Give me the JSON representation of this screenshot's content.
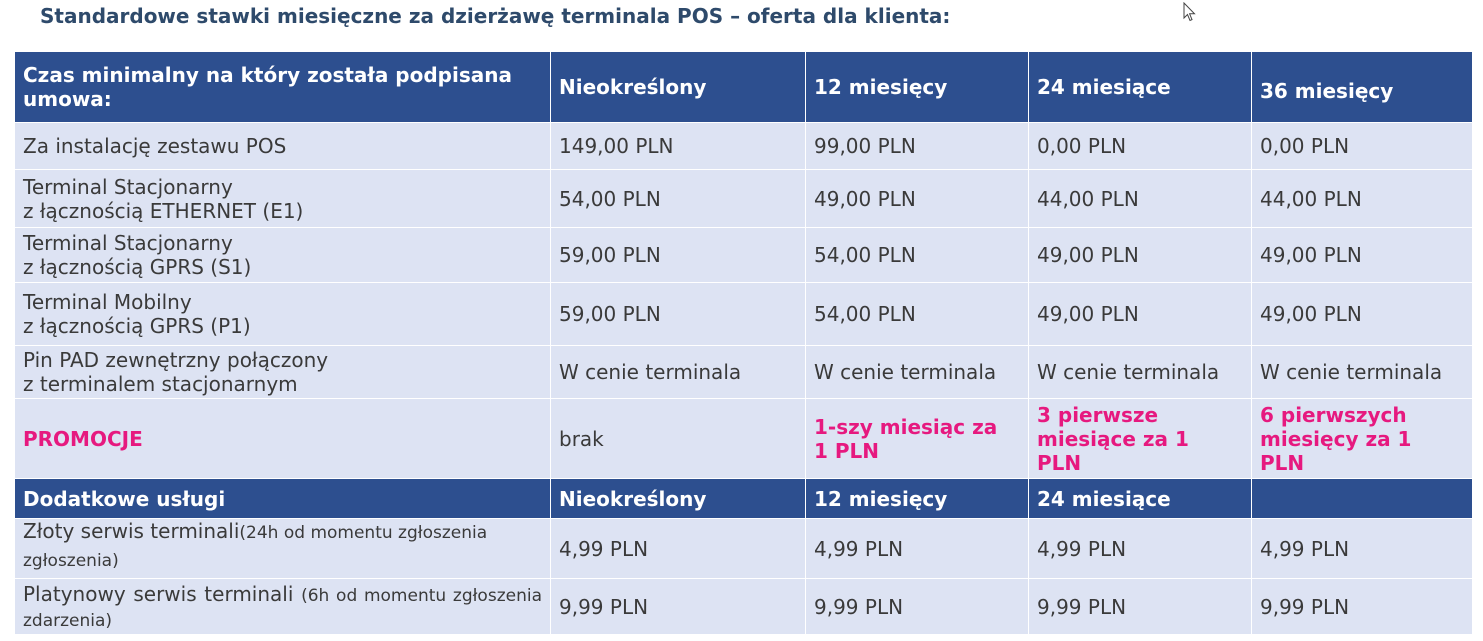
{
  "title": "Standardowe stawki miesięczne za dzierżawę terminala POS – oferta dla klienta:",
  "header": {
    "col0": "Czas minimalny na który została podpisana umowa:",
    "col1": "Nieokreślony",
    "col2": "12 miesięcy",
    "col3": "24 miesiące",
    "col4": "36 miesięcy"
  },
  "rows": [
    {
      "line1": "Za instalację zestawu POS",
      "line2": "",
      "v": [
        "149,00 PLN",
        "99,00 PLN",
        "0,00 PLN",
        "0,00 PLN"
      ]
    },
    {
      "line1": "Terminal Stacjonarny",
      "line2": "z łącznością ETHERNET (E1)",
      "v": [
        "54,00 PLN",
        "49,00 PLN",
        "44,00 PLN",
        "44,00 PLN"
      ]
    },
    {
      "line1": "Terminal Stacjonarny",
      "line2": "z łącznością GPRS (S1)",
      "v": [
        "59,00 PLN",
        "54,00 PLN",
        "49,00 PLN",
        "49,00 PLN"
      ]
    },
    {
      "line1": "Terminal Mobilny",
      "line2": "z łącznością GPRS (P1)",
      "v": [
        "59,00 PLN",
        "54,00 PLN",
        "49,00 PLN",
        "49,00 PLN"
      ]
    },
    {
      "line1": "Pin PAD zewnętrzny połączony",
      "line2": "z terminalem stacjonarnym",
      "v": [
        "W cenie terminala",
        "W cenie terminala",
        "W cenie terminala",
        "W cenie terminala"
      ]
    }
  ],
  "promo": {
    "label": "PROMOCJE",
    "v1": "brak",
    "v2": "1-szy miesiąc za 1 PLN",
    "v3": "3 pierwsze miesiące za 1 PLN",
    "v4": "6 pierwszych miesięcy za 1 PLN"
  },
  "header2": {
    "col0": "Dodatkowe usługi",
    "col1": "Nieokreślony",
    "col2": "12 miesięcy",
    "col3": "24 miesiące",
    "col4": ""
  },
  "services": [
    {
      "name": "Złoty serwis terminali",
      "note": "(24h od momentu zgłoszenia zgłoszenia)",
      "v": [
        "4,99 PLN",
        "4,99 PLN",
        "4,99 PLN",
        "4,99 PLN"
      ]
    },
    {
      "name": "Platynowy serwis terminali",
      "note": "(6h od momentu zgłoszenia zdarzenia)",
      "v": [
        "9,99 PLN",
        "9,99 PLN",
        "9,99 PLN",
        "9,99 PLN"
      ]
    }
  ]
}
